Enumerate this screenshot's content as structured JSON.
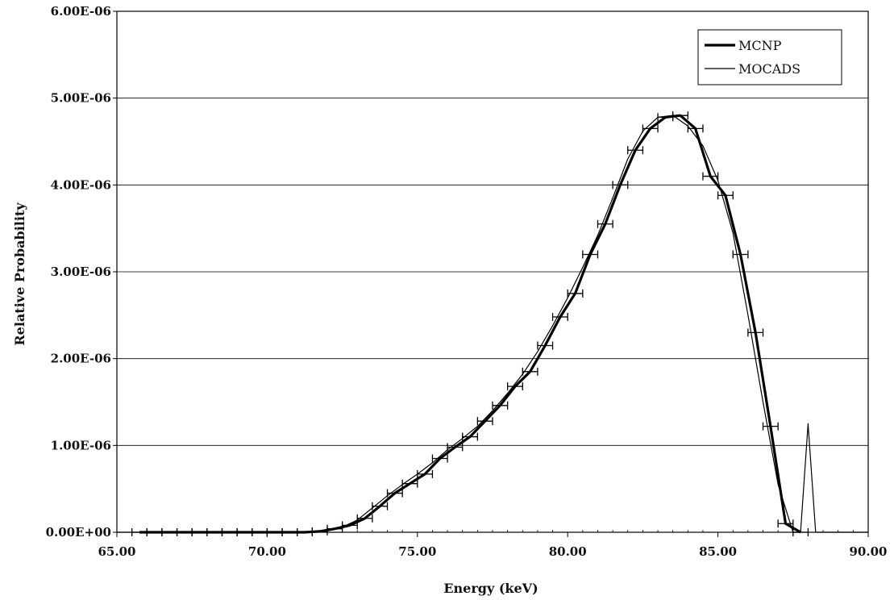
{
  "chart_data": {
    "type": "line",
    "xlabel": "Energy (keV)",
    "ylabel": "Relative Probability",
    "xlim": [
      65,
      90
    ],
    "ylim": [
      0,
      6e-06
    ],
    "x_ticks": [
      65,
      70,
      75,
      80,
      85,
      90
    ],
    "x_tick_labels": [
      "65.00",
      "70.00",
      "75.00",
      "80.00",
      "85.00",
      "90.00"
    ],
    "y_ticks": [
      0,
      1e-06,
      2e-06,
      3e-06,
      4e-06,
      5e-06,
      6e-06
    ],
    "y_tick_labels": [
      "0.00E+00",
      "1.00E-06",
      "2.00E-06",
      "3.00E-06",
      "4.00E-06",
      "5.00E-06",
      "6.00E-06"
    ],
    "grid": "horizontal",
    "legend_position": "top-right",
    "series": [
      {
        "name": "MCNP",
        "color": "#000000",
        "style": "thick line with horizontal error bars",
        "x_error": 0.25,
        "x": [
          65.75,
          66.25,
          66.75,
          67.25,
          67.75,
          68.25,
          68.75,
          69.25,
          69.75,
          70.25,
          70.75,
          71.25,
          71.75,
          72.25,
          72.75,
          73.25,
          73.75,
          74.25,
          74.75,
          75.25,
          75.75,
          76.25,
          76.75,
          77.25,
          77.75,
          78.25,
          78.75,
          79.25,
          79.75,
          80.25,
          80.75,
          81.25,
          81.75,
          82.25,
          82.75,
          83.25,
          83.75,
          84.25,
          84.75,
          85.25,
          85.75,
          86.25,
          86.75,
          87.25,
          87.75
        ],
        "y": [
          0,
          0,
          0,
          0,
          0,
          0,
          0,
          0,
          0,
          0,
          0,
          0,
          1e-08,
          4e-08,
          8e-08,
          1.6e-07,
          3e-07,
          4.5e-07,
          5.6e-07,
          6.7e-07,
          8.5e-07,
          9.8e-07,
          1.1e-06,
          1.28e-06,
          1.46e-06,
          1.68e-06,
          1.85e-06,
          2.15e-06,
          2.48e-06,
          2.75e-06,
          3.2e-06,
          3.55e-06,
          4e-06,
          4.4e-06,
          4.65e-06,
          4.78e-06,
          4.8e-06,
          4.65e-06,
          4.1e-06,
          3.88e-06,
          3.2e-06,
          2.3e-06,
          1.22e-06,
          1e-07,
          0
        ]
      },
      {
        "name": "MOCADS",
        "color": "#000000",
        "style": "thin line",
        "x": [
          65,
          70,
          71.5,
          72,
          72.5,
          73,
          73.5,
          74,
          74.5,
          75,
          75.5,
          76,
          76.5,
          77,
          77.5,
          78,
          78.5,
          79,
          79.5,
          80,
          80.5,
          81,
          81.5,
          82,
          82.5,
          83,
          83.5,
          84,
          84.5,
          85,
          85.5,
          86,
          86.5,
          87,
          87.5,
          87.75,
          88,
          88.25,
          88.5,
          90
        ],
        "y": [
          0,
          0,
          5e-09,
          2e-08,
          6e-08,
          1.4e-07,
          2.8e-07,
          4.2e-07,
          5.5e-07,
          6.7e-07,
          8e-07,
          9.5e-07,
          1.08e-06,
          1.22e-06,
          1.4e-06,
          1.6e-06,
          1.82e-06,
          2.08e-06,
          2.38e-06,
          2.7e-06,
          3.05e-06,
          3.42e-06,
          3.85e-06,
          4.3e-06,
          4.62e-06,
          4.78e-06,
          4.8e-06,
          4.68e-06,
          4.45e-06,
          4.05e-06,
          3.45e-06,
          2.5e-06,
          1.5e-06,
          5.5e-07,
          0,
          0,
          1.25e-06,
          0,
          0,
          0
        ]
      }
    ]
  }
}
